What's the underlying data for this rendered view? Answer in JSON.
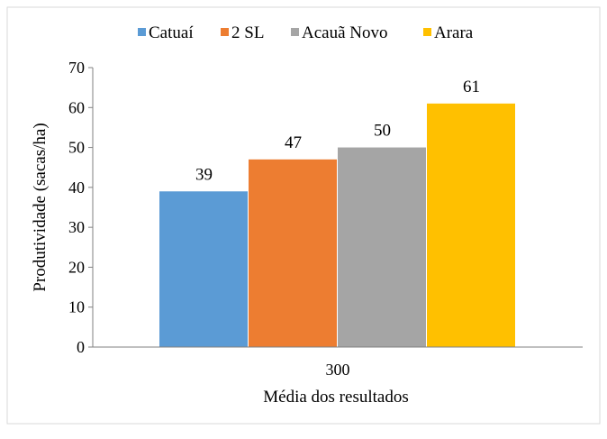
{
  "chart_data": {
    "type": "bar",
    "categories": [
      "300"
    ],
    "series": [
      {
        "name": "Catuaí",
        "values": [
          39
        ],
        "color": "#5B9BD5"
      },
      {
        "name": "2 SL",
        "values": [
          47
        ],
        "color": "#ED7D31"
      },
      {
        "name": "Acauã Novo",
        "values": [
          50
        ],
        "color": "#A5A5A5"
      },
      {
        "name": "Arara",
        "values": [
          61
        ],
        "color": "#FFC000"
      }
    ],
    "title": "",
    "xlabel": "Média dos resultados",
    "ylabel": "Produtividade (sacas/ha)",
    "ylim": [
      0,
      70
    ],
    "yticks": [
      0,
      10,
      20,
      30,
      40,
      50,
      60,
      70
    ],
    "grid": false,
    "legend_position": "top",
    "data_labels": true
  }
}
